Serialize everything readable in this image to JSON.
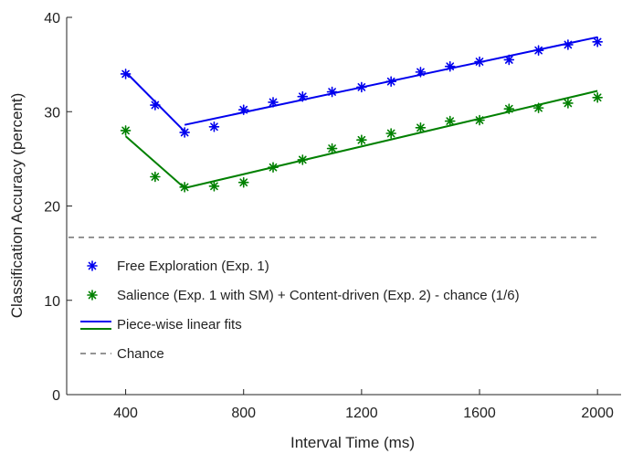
{
  "chart_data": {
    "type": "scatter",
    "xlabel": "Interval Time (ms)",
    "ylabel": "Classification Accuracy (percent)",
    "xlim": [
      200,
      2080
    ],
    "ylim": [
      0,
      40
    ],
    "xticks": [
      400,
      800,
      1200,
      1600,
      2000
    ],
    "yticks": [
      0,
      10,
      20,
      30,
      40
    ],
    "grid": false,
    "legend_position": "lower-left",
    "series": [
      {
        "name": "Free Exploration (Exp. 1)",
        "type": "scatter",
        "marker": "*",
        "color": "#0000ee",
        "x": [
          400,
          500,
          600,
          700,
          800,
          900,
          1000,
          1100,
          1200,
          1300,
          1400,
          1500,
          1600,
          1700,
          1800,
          1900,
          2000
        ],
        "y": [
          34.0,
          30.7,
          27.8,
          28.4,
          30.2,
          31.0,
          31.6,
          32.1,
          32.6,
          33.2,
          34.2,
          34.8,
          35.3,
          35.5,
          36.5,
          37.1,
          37.4
        ]
      },
      {
        "name": "Salience (Exp. 1 with SM) + Content-driven (Exp. 2) - chance (1/6)",
        "type": "scatter",
        "marker": "*",
        "color": "#008000",
        "x": [
          400,
          500,
          600,
          700,
          800,
          900,
          1000,
          1100,
          1200,
          1300,
          1400,
          1500,
          1600,
          1700,
          1800,
          1900,
          2000
        ],
        "y": [
          28.0,
          23.1,
          22.0,
          22.1,
          22.5,
          24.1,
          24.9,
          26.1,
          27.0,
          27.7,
          28.3,
          29.0,
          29.1,
          30.3,
          30.4,
          30.9,
          31.5
        ]
      }
    ],
    "fits": [
      {
        "name": "Piece-wise linear fits",
        "color": "#0000ee",
        "segments": [
          [
            [
              400,
              34.2
            ],
            [
              600,
              27.9
            ]
          ],
          [
            [
              600,
              28.6
            ],
            [
              2000,
              37.9
            ]
          ]
        ]
      },
      {
        "name": "",
        "color": "#008000",
        "segments": [
          [
            [
              400,
              27.4
            ],
            [
              600,
              21.9
            ]
          ],
          [
            [
              600,
              21.9
            ],
            [
              2000,
              32.2
            ]
          ]
        ]
      }
    ],
    "reference_line": {
      "name": "Chance",
      "y": 16.67,
      "color": "#555555",
      "style": "dashed"
    },
    "legend": [
      {
        "label": "Free Exploration (Exp. 1)",
        "kind": "marker",
        "color": "#0000ee"
      },
      {
        "label": "Salience (Exp. 1 with SM) + Content-driven (Exp. 2) - chance (1/6)",
        "kind": "marker",
        "color": "#008000"
      },
      {
        "label": "Piece-wise linear fits",
        "kind": "lines",
        "colors": [
          "#0000ee",
          "#008000"
        ]
      },
      {
        "label": "Chance",
        "kind": "dashed",
        "color": "#555555"
      }
    ]
  }
}
